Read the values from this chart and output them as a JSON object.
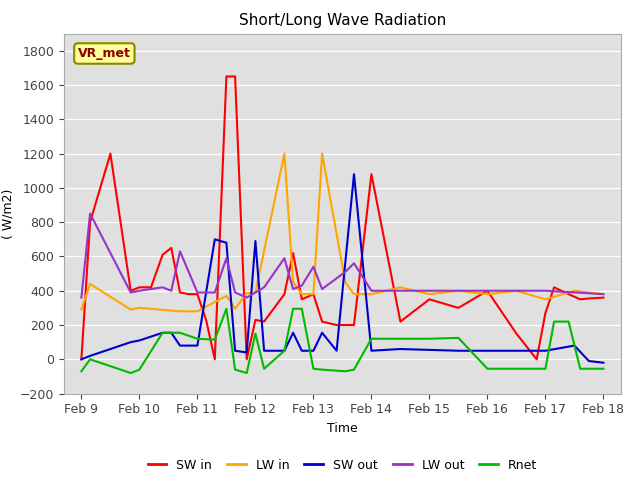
{
  "title": "Short/Long Wave Radiation",
  "ylabel": "( W/m2)",
  "xlabel": "Time",
  "annotation": "VR_met",
  "ylim": [
    -200,
    1900
  ],
  "yticks": [
    -200,
    0,
    200,
    400,
    600,
    800,
    1000,
    1200,
    1400,
    1600,
    1800
  ],
  "plot_bg": "#e0e0e0",
  "fig_bg": "#ffffff",
  "legend_labels": [
    "SW in",
    "LW in",
    "SW out",
    "LW out",
    "Rnet"
  ],
  "legend_colors": [
    "#ff0000",
    "#ffa500",
    "#0000cd",
    "#9932cc",
    "#00bb00"
  ],
  "xlim": [
    -0.3,
    9.3
  ],
  "x_ticks": [
    0,
    1,
    2,
    3,
    4,
    5,
    6,
    7,
    8,
    9
  ],
  "x_labels": [
    "Feb 9",
    "Feb 10",
    "Feb 11",
    "Feb 12",
    "Feb 13",
    "Feb 14",
    "Feb 15",
    "Feb 16",
    "Feb 17",
    "Feb 18"
  ],
  "SW_in_t": [
    0,
    0.15,
    0.5,
    0.85,
    1.0,
    1.2,
    1.4,
    1.55,
    1.7,
    1.85,
    2.0,
    2.15,
    2.3,
    2.5,
    2.65,
    2.85,
    3.0,
    3.15,
    3.5,
    3.65,
    3.8,
    4.0,
    4.15,
    4.4,
    4.55,
    4.7,
    5.0,
    5.5,
    6.0,
    6.5,
    7.0,
    7.5,
    7.85,
    8.0,
    8.15,
    8.4,
    8.6,
    8.75,
    9.0
  ],
  "SW_in": [
    0,
    800,
    1200,
    400,
    420,
    420,
    610,
    650,
    390,
    380,
    380,
    230,
    0,
    1650,
    1650,
    0,
    230,
    220,
    380,
    620,
    350,
    380,
    220,
    200,
    200,
    200,
    1080,
    220,
    350,
    300,
    400,
    150,
    0,
    270,
    420,
    380,
    350,
    355,
    360
  ],
  "LW_in_t": [
    0,
    0.15,
    0.85,
    1.0,
    1.7,
    2.0,
    2.5,
    2.65,
    2.85,
    3.0,
    3.5,
    3.65,
    3.8,
    4.0,
    4.15,
    4.55,
    4.7,
    5.0,
    5.5,
    6.0,
    6.5,
    7.0,
    7.5,
    8.0,
    8.5,
    9.0
  ],
  "LW_in": [
    290,
    440,
    290,
    300,
    280,
    280,
    370,
    295,
    385,
    390,
    1200,
    450,
    380,
    380,
    1200,
    450,
    380,
    380,
    420,
    380,
    400,
    380,
    400,
    350,
    400,
    380
  ],
  "SW_out_t": [
    0,
    0.15,
    0.85,
    1.0,
    1.4,
    1.55,
    1.7,
    2.0,
    2.3,
    2.5,
    2.65,
    2.85,
    3.0,
    3.15,
    3.5,
    3.65,
    3.8,
    4.0,
    4.15,
    4.4,
    4.7,
    5.0,
    5.5,
    6.0,
    6.5,
    7.0,
    7.5,
    8.0,
    8.5,
    8.75,
    9.0
  ],
  "SW_out": [
    0,
    20,
    100,
    110,
    155,
    155,
    80,
    80,
    700,
    680,
    50,
    40,
    690,
    50,
    50,
    155,
    50,
    50,
    155,
    50,
    1080,
    50,
    60,
    55,
    50,
    50,
    50,
    50,
    80,
    -10,
    -20
  ],
  "LW_out_t": [
    0,
    0.15,
    0.85,
    1.0,
    1.4,
    1.55,
    1.7,
    2.0,
    2.3,
    2.5,
    2.65,
    2.85,
    3.0,
    3.15,
    3.5,
    3.65,
    3.8,
    4.0,
    4.15,
    4.55,
    4.7,
    5.0,
    5.5,
    6.0,
    6.5,
    7.0,
    7.5,
    8.0,
    8.5,
    9.0
  ],
  "LW_out": [
    360,
    850,
    390,
    400,
    420,
    400,
    630,
    390,
    390,
    590,
    390,
    360,
    390,
    420,
    590,
    410,
    430,
    540,
    410,
    510,
    560,
    400,
    400,
    400,
    400,
    400,
    400,
    400,
    390,
    380
  ],
  "Rnet_t": [
    0,
    0.15,
    0.85,
    1.0,
    1.4,
    1.55,
    1.7,
    2.0,
    2.3,
    2.5,
    2.65,
    2.85,
    3.0,
    3.15,
    3.5,
    3.65,
    3.8,
    4.0,
    4.15,
    4.55,
    4.7,
    5.0,
    5.5,
    6.0,
    6.5,
    7.0,
    7.5,
    8.0,
    8.15,
    8.4,
    8.6,
    8.75,
    9.0
  ],
  "Rnet": [
    -70,
    0,
    -80,
    -60,
    155,
    155,
    155,
    120,
    115,
    295,
    -60,
    -80,
    150,
    -55,
    50,
    295,
    295,
    -55,
    -60,
    -70,
    -60,
    120,
    120,
    120,
    125,
    -55,
    -55,
    -55,
    220,
    220,
    -55,
    -55,
    -55
  ]
}
